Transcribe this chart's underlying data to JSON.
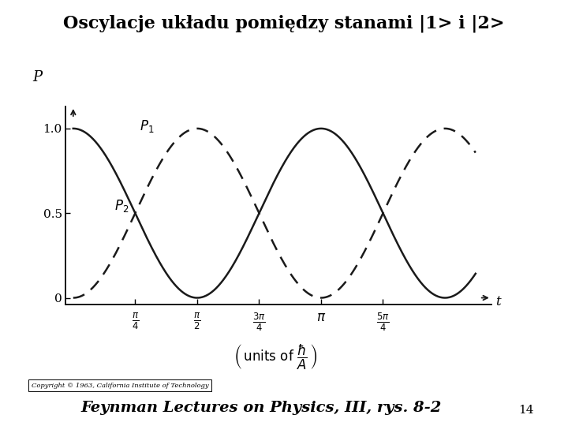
{
  "title": "Oscylacje układu pomiędzy stanami |1> i |2>",
  "ylabel": "P",
  "xlabel_t": "t",
  "label_P1": "$P_1$",
  "label_P2": "$P_2$",
  "yticks": [
    0,
    0.5,
    1.0
  ],
  "ytick_labels": [
    "0",
    "0.5",
    "1.0"
  ],
  "xtick_positions": [
    0.7853981633974483,
    1.5707963267948966,
    2.356194490192345,
    3.141592653589793,
    3.9269908169872414
  ],
  "xtick_labels": [
    "$\\frac{\\pi}{4}$",
    "$\\frac{\\pi}{2}$",
    "$\\frac{3\\pi}{4}$",
    "$\\pi$",
    "$\\frac{5\\pi}{4}$"
  ],
  "x_max": 4.8,
  "copyright": "Copyright © 1963, California Institute of Technology",
  "footer": "Feynman Lectures on Physics, III, rys. 8-2",
  "page_number": "14",
  "bg_color": "#ffffff",
  "curve_color": "#1a1a1a",
  "title_fontsize": 16,
  "footer_fontsize": 14
}
